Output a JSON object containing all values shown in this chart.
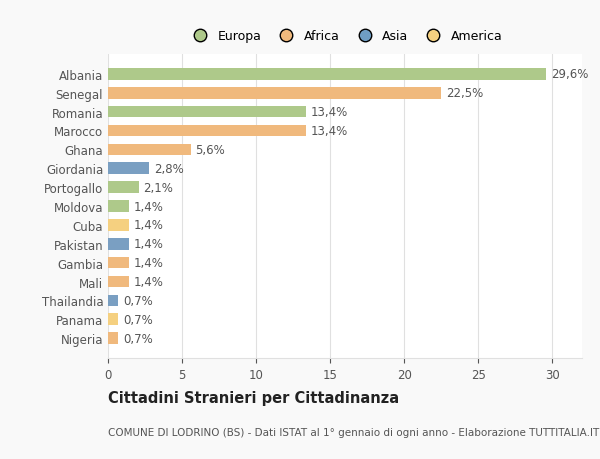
{
  "categories": [
    "Albania",
    "Senegal",
    "Romania",
    "Marocco",
    "Ghana",
    "Giordania",
    "Portogallo",
    "Moldova",
    "Cuba",
    "Pakistan",
    "Gambia",
    "Mali",
    "Thailandia",
    "Panama",
    "Nigeria"
  ],
  "values": [
    29.6,
    22.5,
    13.4,
    13.4,
    5.6,
    2.8,
    2.1,
    1.4,
    1.4,
    1.4,
    1.4,
    1.4,
    0.7,
    0.7,
    0.7
  ],
  "labels": [
    "29,6%",
    "22,5%",
    "13,4%",
    "13,4%",
    "5,6%",
    "2,8%",
    "2,1%",
    "1,4%",
    "1,4%",
    "1,4%",
    "1,4%",
    "1,4%",
    "0,7%",
    "0,7%",
    "0,7%"
  ],
  "colors": [
    "#aec98a",
    "#f0b97d",
    "#aec98a",
    "#f0b97d",
    "#f0b97d",
    "#7a9fc2",
    "#aec98a",
    "#aec98a",
    "#f5d080",
    "#7a9fc2",
    "#f0b97d",
    "#f0b97d",
    "#7a9fc2",
    "#f5d080",
    "#f0b97d"
  ],
  "legend": [
    {
      "label": "Europa",
      "color": "#aec98a"
    },
    {
      "label": "Africa",
      "color": "#f0b97d"
    },
    {
      "label": "Asia",
      "color": "#6f9ec4"
    },
    {
      "label": "America",
      "color": "#f5d080"
    }
  ],
  "title": "Cittadini Stranieri per Cittadinanza",
  "subtitle": "COMUNE DI LODRINO (BS) - Dati ISTAT al 1° gennaio di ogni anno - Elaborazione TUTTITALIA.IT",
  "xlim": [
    0,
    32
  ],
  "xticks": [
    0,
    5,
    10,
    15,
    20,
    25,
    30
  ],
  "background_color": "#f9f9f9",
  "bar_background": "#ffffff",
  "grid_color": "#e0e0e0",
  "text_color": "#555555",
  "label_fontsize": 8.5,
  "title_fontsize": 10.5,
  "subtitle_fontsize": 7.5
}
